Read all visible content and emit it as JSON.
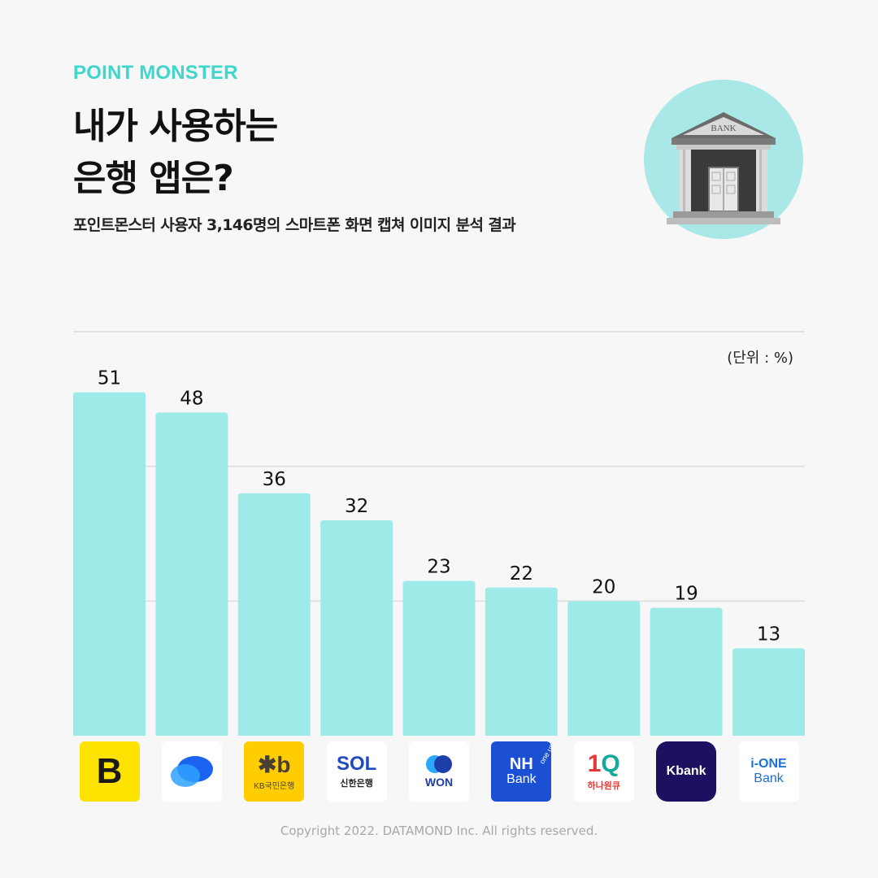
{
  "header": {
    "brand": "POINT MONSTER",
    "title_line1": "내가 사용하는",
    "title_line2": "은행 앱은?",
    "subtitle": "포인트몬스터 사용자 3,146명의 스마트폰 화면 캡쳐 이미지 분석 결과"
  },
  "illustration": {
    "sign_text": "BANK",
    "icon": "bank-building-icon"
  },
  "unit_label": "(단위 : %)",
  "chart_data": {
    "type": "bar",
    "categories": [
      "B",
      "Toss",
      "KB국민은행",
      "SOL 신한은행",
      "WON",
      "NH Bank one up",
      "1Q 하나원큐",
      "Kbank",
      "i-ONE Bank"
    ],
    "values": [
      51,
      48,
      36,
      32,
      23,
      22,
      20,
      19,
      13
    ],
    "ylim": [
      0,
      60
    ],
    "grid": true,
    "bar_color": "#9eeae8",
    "title": "",
    "xlabel": "",
    "ylabel": ""
  },
  "logos": [
    {
      "icon": "kakaobank-logo",
      "text": "B",
      "bg": "#ffe300",
      "fg": "#1a1a1a"
    },
    {
      "icon": "toss-logo",
      "bg": "#ffffff",
      "fg": "#1b64f2"
    },
    {
      "icon": "kb-logo",
      "mark": "✱b",
      "text": "KB국민은행",
      "bg": "#ffcd00",
      "fg": "#4a3f35"
    },
    {
      "icon": "sol-logo",
      "mark": "SOL",
      "text": "신한은행",
      "bg": "#ffffff",
      "fg": "#1f4bbd"
    },
    {
      "icon": "won-logo",
      "text": "WON",
      "bg": "#ffffff",
      "fg": "#1c3ea8"
    },
    {
      "icon": "nh-logo",
      "mark": "NH",
      "text": "Bank",
      "tag": "one up",
      "bg": "#1b4fd4",
      "fg": "#ffffff"
    },
    {
      "icon": "hana-logo",
      "mark": "1Q",
      "text": "하나원큐",
      "bg": "#ffffff",
      "fg": "#16a89a"
    },
    {
      "icon": "kbank-logo",
      "text": "Kbank",
      "bg": "#1d1060",
      "fg": "#ffffff"
    },
    {
      "icon": "ibk-logo",
      "mark": "i-ONE",
      "text": "Bank",
      "bg": "#ffffff",
      "fg": "#1e6fd0"
    }
  ],
  "footer": {
    "copyright": "Copyright 2022. DATAMOND Inc. All rights reserved."
  }
}
